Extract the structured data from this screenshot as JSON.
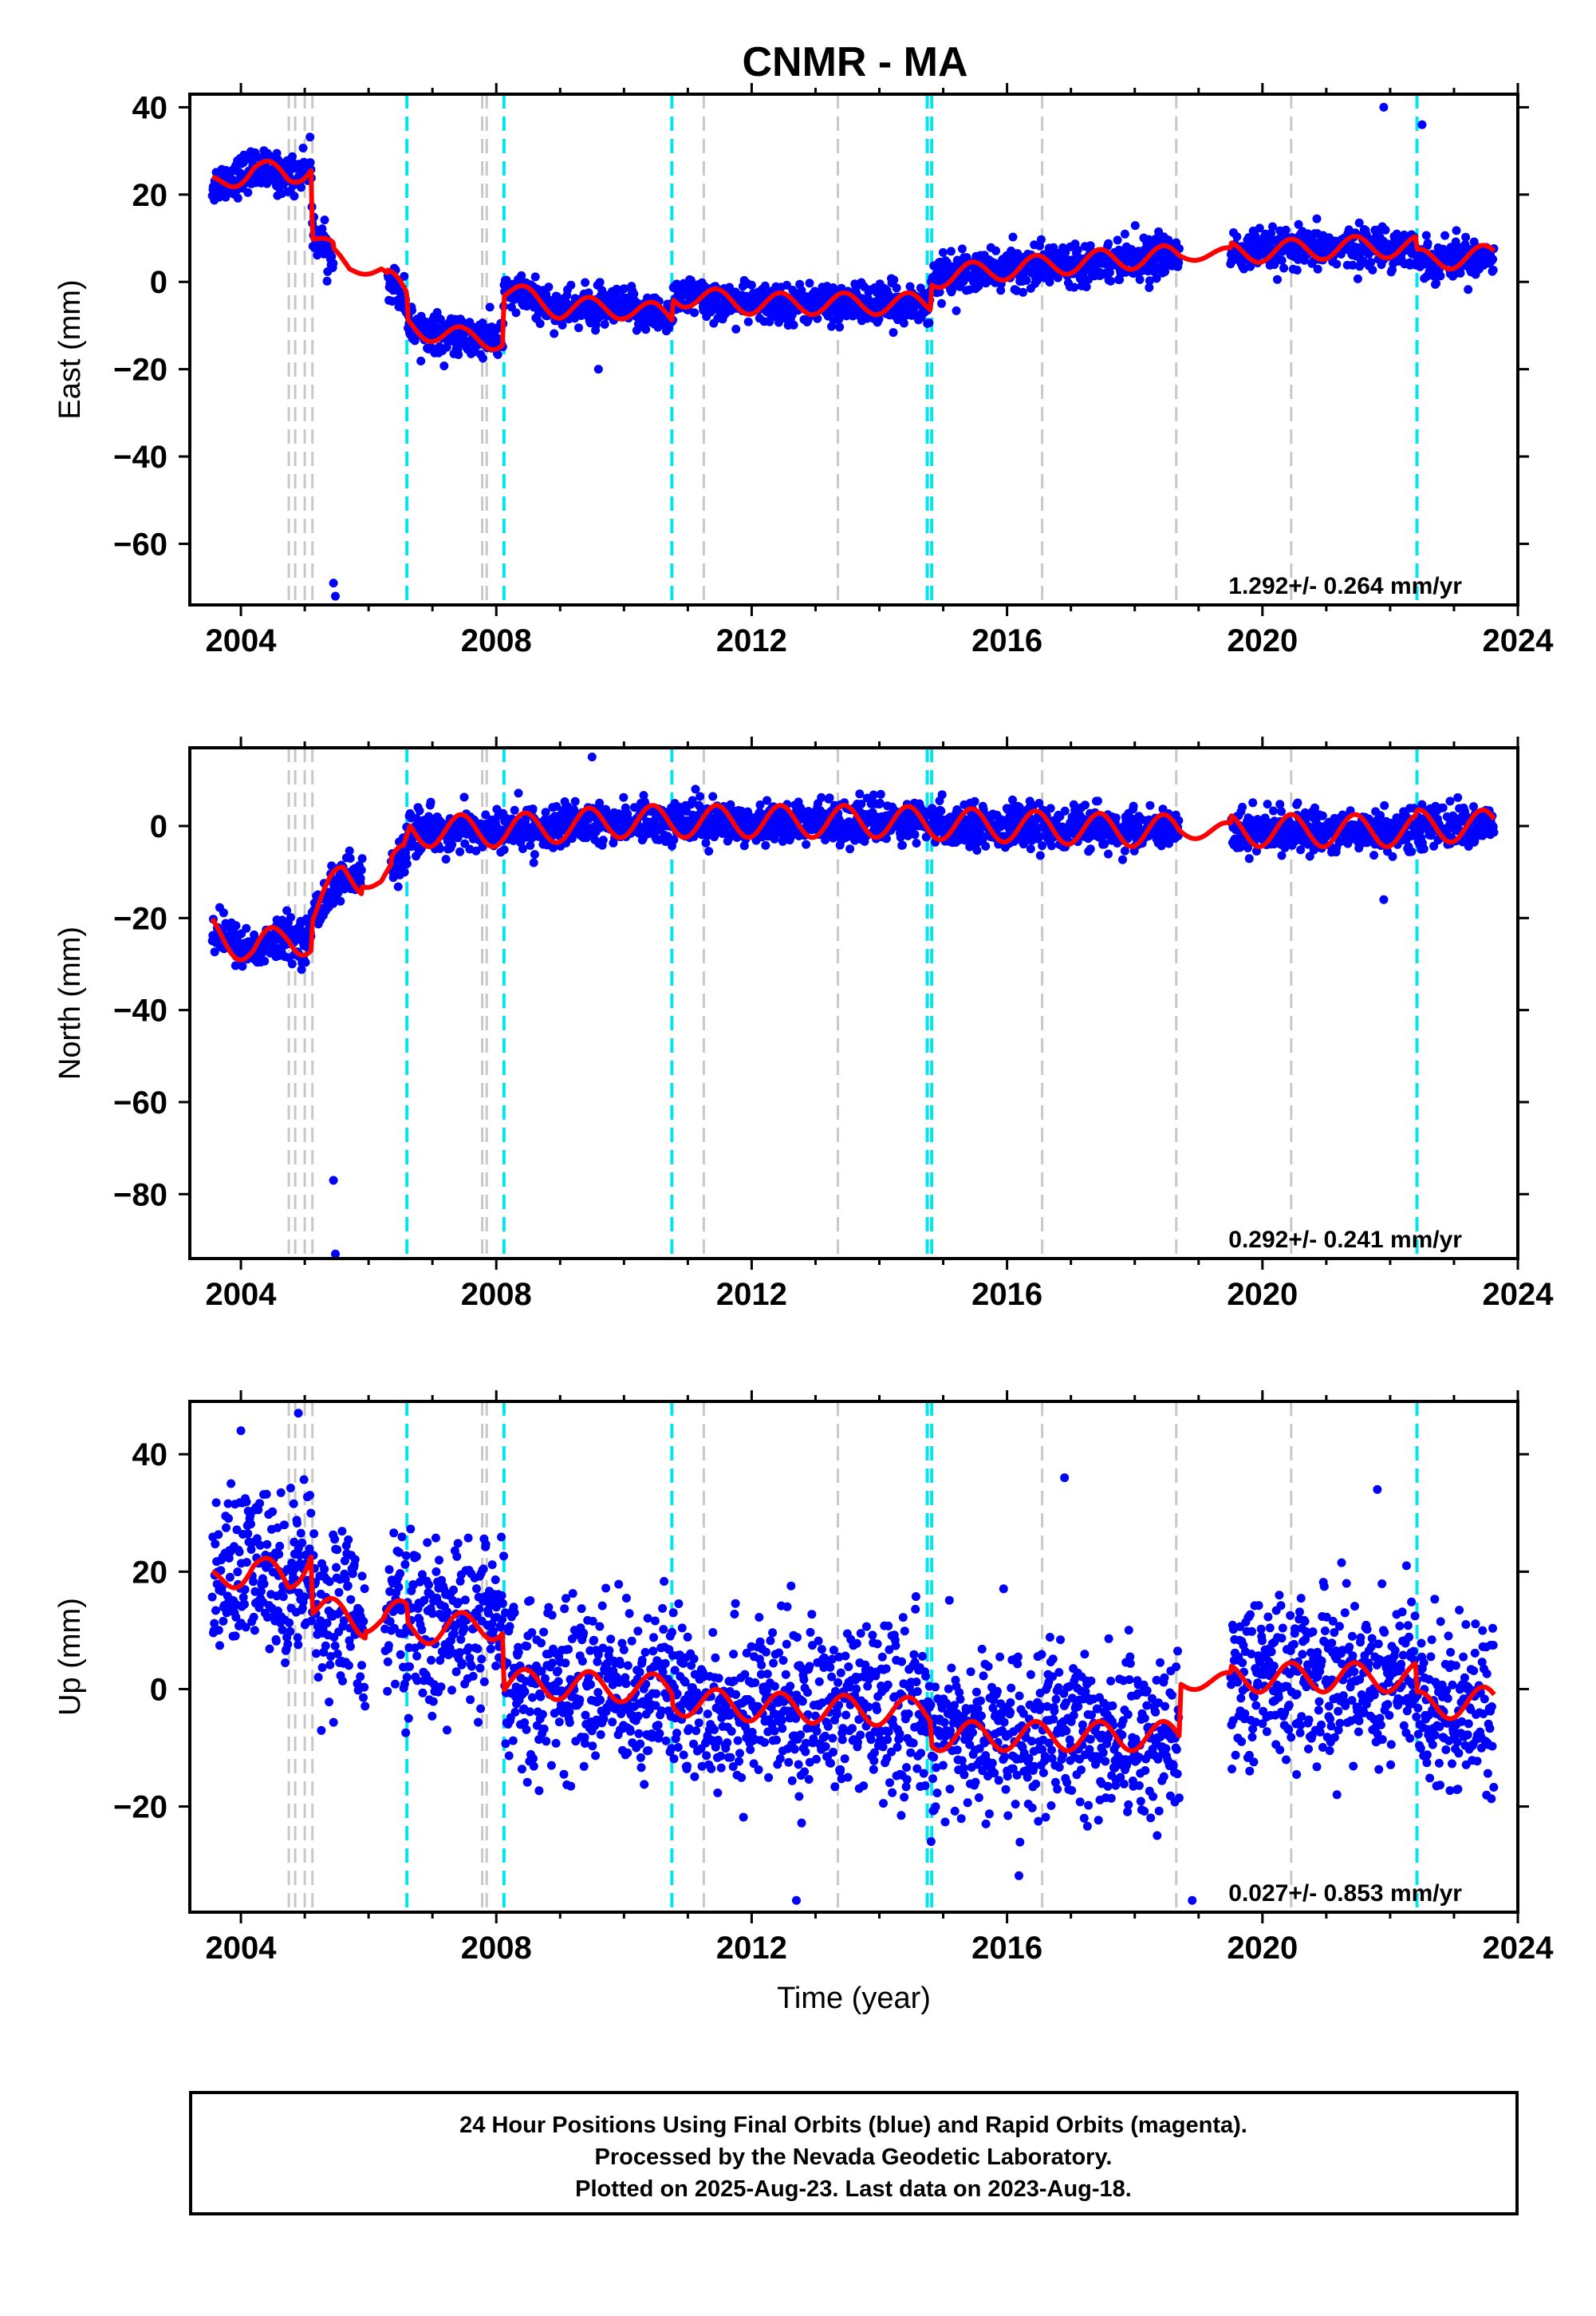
{
  "title": "CNMR - MA",
  "footer": {
    "line1": "24 Hour Positions Using Final Orbits (blue) and Rapid Orbits (magenta).",
    "line2": "Processed by the Nevada Geodetic Laboratory.",
    "line3": "Plotted on 2025-Aug-23. Last data on 2023-Aug-18."
  },
  "colors": {
    "final_orbits": "#0000ff",
    "model_fit": "#ff0000",
    "equipment_change": "#00e5ee",
    "earthquake": "#c8c8c8"
  },
  "chart_data": [
    {
      "type": "scatter",
      "panel": "east",
      "ylabel": "East (mm)",
      "xlabel": "",
      "xlim": [
        2003.2,
        2024.0
      ],
      "ylim": [
        -74,
        43
      ],
      "xticks": [
        2004,
        2008,
        2012,
        2016,
        2020,
        2024
      ],
      "yticks": [
        40,
        20,
        0,
        -20,
        -40,
        -60
      ],
      "rate_text": "1.292+/- 0.264 mm/yr",
      "velocity": 1.292,
      "scatter_sd": 2.2,
      "amplitude": 2.5,
      "gaps": [
        [
          2005.45,
          2006.3
        ],
        [
          2018.7,
          2019.5
        ]
      ],
      "outliers": [
        [
          2005.45,
          -69
        ],
        [
          2005.48,
          -72
        ],
        [
          2021.9,
          40
        ],
        [
          2022.5,
          36
        ],
        [
          2009.6,
          -20
        ]
      ],
      "model": [
        [
          2003.55,
          22
        ],
        [
          2004.2,
          26
        ],
        [
          2004.75,
          24
        ],
        [
          2005.1,
          27
        ],
        [
          2005.12,
          11
        ],
        [
          2005.7,
          3
        ],
        [
          2006.2,
          3
        ],
        [
          2006.6,
          -4
        ],
        [
          2006.62,
          -10
        ],
        [
          2007.5,
          -13
        ],
        [
          2008.1,
          -13
        ],
        [
          2008.12,
          -2
        ],
        [
          2009.0,
          -6
        ],
        [
          2010.0,
          -6
        ],
        [
          2010.75,
          -8
        ],
        [
          2010.77,
          -3
        ],
        [
          2012.0,
          -5
        ],
        [
          2013.3,
          -5
        ],
        [
          2014.8,
          -5
        ],
        [
          2014.82,
          1
        ],
        [
          2016.0,
          3
        ],
        [
          2017.5,
          5
        ],
        [
          2018.7,
          6
        ],
        [
          2020.0,
          7
        ],
        [
          2021.5,
          8
        ],
        [
          2022.4,
          8
        ],
        [
          2022.42,
          5
        ],
        [
          2023.6,
          6
        ]
      ]
    },
    {
      "type": "scatter",
      "panel": "north",
      "ylabel": "North (mm)",
      "xlabel": "",
      "xlim": [
        2003.2,
        2024.0
      ],
      "ylim": [
        -94,
        17
      ],
      "xticks": [
        2004,
        2008,
        2012,
        2016,
        2020,
        2024
      ],
      "yticks": [
        0,
        -20,
        -40,
        -60,
        -80
      ],
      "rate_text": "0.292+/- 0.241 mm/yr",
      "velocity": 0.292,
      "scatter_sd": 2.2,
      "amplitude": 3.5,
      "gaps": [
        [
          2005.9,
          2006.35
        ],
        [
          2018.7,
          2019.5
        ]
      ],
      "outliers": [
        [
          2005.45,
          -77
        ],
        [
          2005.48,
          -93
        ],
        [
          2009.5,
          15
        ],
        [
          2021.9,
          -16
        ]
      ],
      "model": [
        [
          2003.55,
          -23
        ],
        [
          2004.2,
          -27
        ],
        [
          2004.75,
          -24
        ],
        [
          2005.1,
          -25
        ],
        [
          2005.12,
          -19
        ],
        [
          2005.6,
          -11
        ],
        [
          2006.2,
          -12
        ],
        [
          2006.55,
          -7
        ],
        [
          2006.65,
          -1
        ],
        [
          2008.1,
          -1
        ],
        [
          2008.12,
          -1
        ],
        [
          2010.0,
          1
        ],
        [
          2012.0,
          1
        ],
        [
          2014.0,
          1
        ],
        [
          2016.0,
          0
        ],
        [
          2018.0,
          -1
        ],
        [
          2020.0,
          -1
        ],
        [
          2022.4,
          -1
        ],
        [
          2022.42,
          0
        ],
        [
          2023.6,
          0
        ]
      ]
    },
    {
      "type": "scatter",
      "panel": "up",
      "ylabel": "Up (mm)",
      "xlabel": "Time (year)",
      "xlim": [
        2003.2,
        2024.0
      ],
      "ylim": [
        -38,
        49
      ],
      "xticks": [
        2004,
        2008,
        2012,
        2016,
        2020,
        2024
      ],
      "yticks": [
        40,
        20,
        0,
        -20
      ],
      "rate_text": "0.027+/- 0.853 mm/yr",
      "velocity": 0.027,
      "scatter_sd": 7,
      "amplitude": 2.5,
      "gaps": [
        [
          2005.95,
          2006.25
        ],
        [
          2018.7,
          2019.5
        ]
      ],
      "outliers": [
        [
          2004.0,
          44
        ],
        [
          2004.9,
          47
        ],
        [
          2021.8,
          34
        ],
        [
          2016.9,
          36
        ],
        [
          2018.9,
          -36
        ],
        [
          2012.7,
          -36
        ]
      ],
      "model": [
        [
          2003.55,
          18
        ],
        [
          2004.2,
          21
        ],
        [
          2004.75,
          18
        ],
        [
          2005.1,
          24
        ],
        [
          2005.12,
          14
        ],
        [
          2006.0,
          11
        ],
        [
          2006.6,
          13
        ],
        [
          2006.62,
          10
        ],
        [
          2008.1,
          11
        ],
        [
          2008.12,
          1
        ],
        [
          2010.75,
          0
        ],
        [
          2010.77,
          -2
        ],
        [
          2012.0,
          -3
        ],
        [
          2014.8,
          -4
        ],
        [
          2014.82,
          -8
        ],
        [
          2016.5,
          -8
        ],
        [
          2018.7,
          -8
        ],
        [
          2018.72,
          1
        ],
        [
          2020.0,
          2
        ],
        [
          2022.4,
          2
        ],
        [
          2022.42,
          -3
        ],
        [
          2023.6,
          -2
        ]
      ]
    }
  ],
  "events": {
    "equipment": [
      2006.6,
      2008.12,
      2010.75,
      2014.75,
      2014.82,
      2022.42
    ],
    "earthquakes": [
      2004.75,
      2004.85,
      2005.0,
      2005.12,
      2007.78,
      2007.85,
      2011.25,
      2013.35,
      2016.55,
      2018.65,
      2020.45
    ]
  },
  "data_start": 2003.55,
  "data_end": 2023.63
}
